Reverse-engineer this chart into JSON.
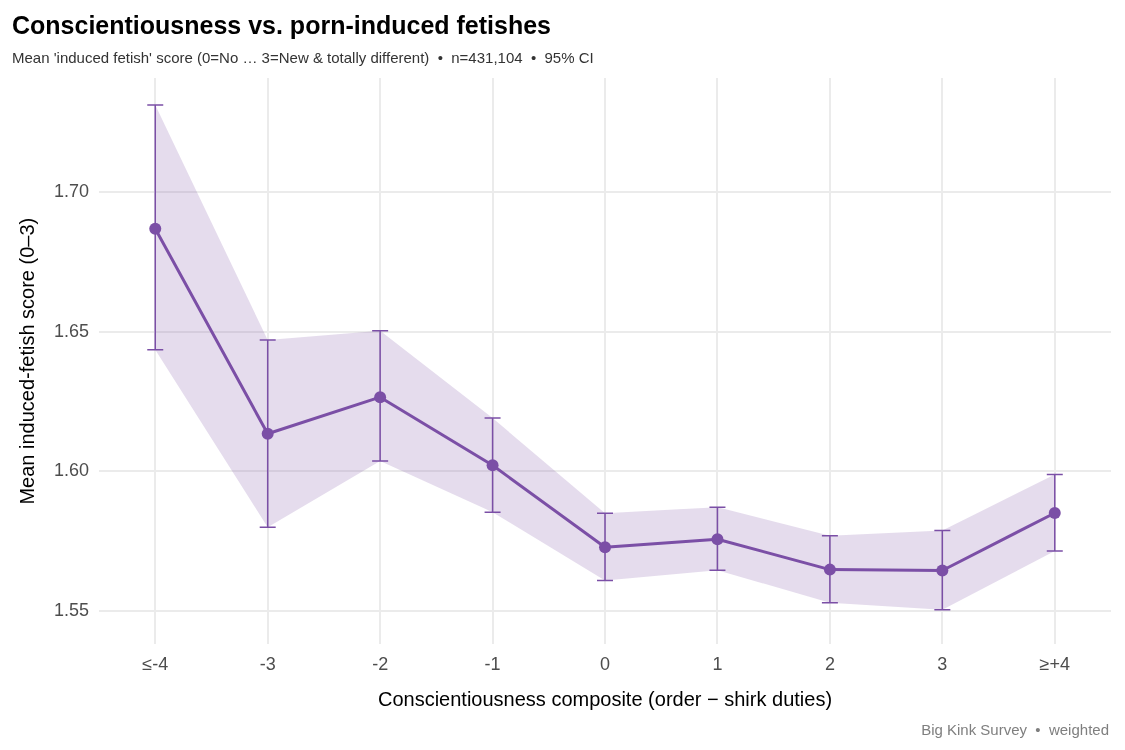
{
  "chart_data": {
    "type": "line",
    "title": "Conscientiousness vs. porn-induced fetishes",
    "subtitle": "Mean 'induced fetish' score (0=No … 3=New & totally different)  •  n=431,104  •  95% CI",
    "xlabel": "Conscientiousness composite (order − shirk duties)",
    "ylabel": "Mean induced-fetish score (0–3)",
    "categories": [
      "≤-4",
      "-3",
      "-2",
      "-1",
      "0",
      "1",
      "2",
      "3",
      "≥+4"
    ],
    "series": [
      {
        "color": "#7b4fa6",
        "values": [
          1.687,
          1.6135,
          1.6266,
          1.6022,
          1.5728,
          1.5757,
          1.5648,
          1.5645,
          1.5851
        ],
        "errors": [
          [
            1.6436,
            1.7313
          ],
          [
            1.58,
            1.6471
          ],
          [
            1.6037,
            1.6504
          ],
          [
            1.5854,
            1.6191
          ],
          [
            1.5609,
            1.585
          ],
          [
            1.5646,
            1.5872
          ],
          [
            1.5529,
            1.5769
          ],
          [
            1.5504,
            1.5788
          ],
          [
            1.5715,
            1.5989
          ]
        ],
        "lower": [
          1.6436,
          1.58,
          1.6037,
          1.5854,
          1.5609,
          1.5646,
          1.5529,
          1.5504,
          1.5715
        ],
        "upper": [
          1.7313,
          1.6471,
          1.6504,
          1.6191,
          1.585,
          1.5872,
          1.5769,
          1.5788,
          1.5989
        ]
      }
    ],
    "ylim": [
      1.538,
      1.741
    ],
    "yticks": [
      1.55,
      {
        "value": 1.6,
        "label": "1.60"
      },
      1.65,
      {
        "value": 1.7,
        "label": "1.70"
      }
    ],
    "grid": true,
    "legend": false,
    "marker": "circle",
    "line_style": "solid",
    "annotations": [
      "Big Kink Survey  •  weighted"
    ]
  }
}
